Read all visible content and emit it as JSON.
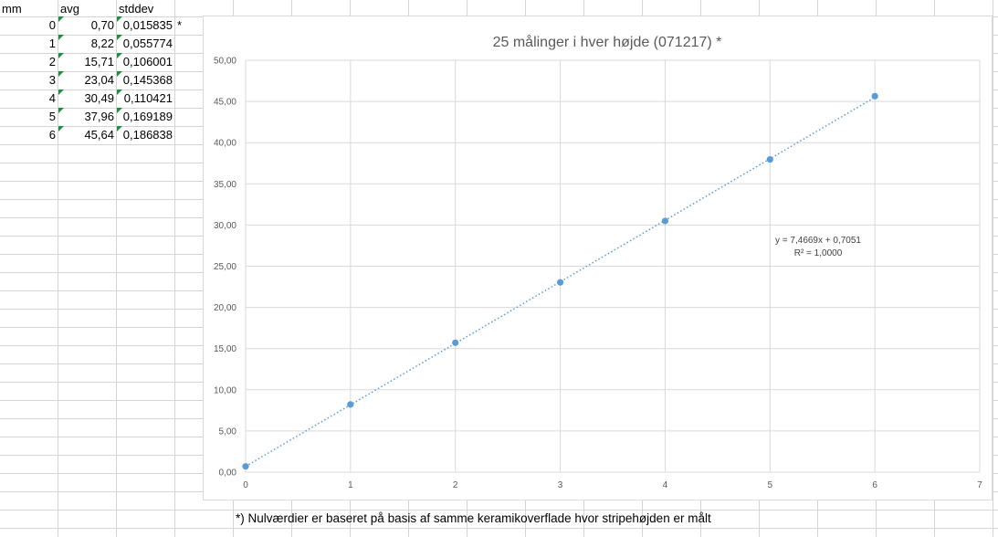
{
  "sheet": {
    "headers": {
      "mm": "mm",
      "avg": "avg",
      "stddev": "stddev"
    },
    "rows": [
      {
        "mm": "0",
        "avg": "0,70",
        "stddev": "0,015835"
      },
      {
        "mm": "1",
        "avg": "8,22",
        "stddev": "0,055774"
      },
      {
        "mm": "2",
        "avg": "15,71",
        "stddev": "0,106001"
      },
      {
        "mm": "3",
        "avg": "23,04",
        "stddev": "0,145368"
      },
      {
        "mm": "4",
        "avg": "30,49",
        "stddev": "0,110421"
      },
      {
        "mm": "5",
        "avg": "37,96",
        "stddev": "0,169189"
      },
      {
        "mm": "6",
        "avg": "45,64",
        "stddev": "0,186838"
      }
    ],
    "asterisk": "*",
    "footnote": "*) Nulværdier er baseret på basis af samme keramikoverflade hvor stripehøjden er målt"
  },
  "chart_data": {
    "type": "scatter",
    "title": "25 målinger i hver højde (071217) *",
    "x": [
      0,
      1,
      2,
      3,
      4,
      5,
      6
    ],
    "y": [
      0.7,
      8.22,
      15.71,
      23.04,
      30.49,
      37.96,
      45.64
    ],
    "xlim": [
      0,
      7
    ],
    "ylim": [
      0,
      50
    ],
    "x_ticks": [
      "0",
      "1",
      "2",
      "3",
      "4",
      "5",
      "6",
      "7"
    ],
    "y_ticks": [
      "0,00",
      "5,00",
      "10,00",
      "15,00",
      "20,00",
      "25,00",
      "30,00",
      "35,00",
      "40,00",
      "45,00",
      "50,00"
    ],
    "grid": true,
    "trendline": {
      "type": "linear",
      "slope": 7.4669,
      "intercept": 0.7051,
      "equation": "y = 7,4669x + 0,7051",
      "r_squared": "R² = 1,0000"
    },
    "colors": {
      "marker": "#5b9bd5",
      "trendline": "#5b9bd5",
      "gridline": "#d9d9d9",
      "axis_text": "#595959"
    }
  }
}
